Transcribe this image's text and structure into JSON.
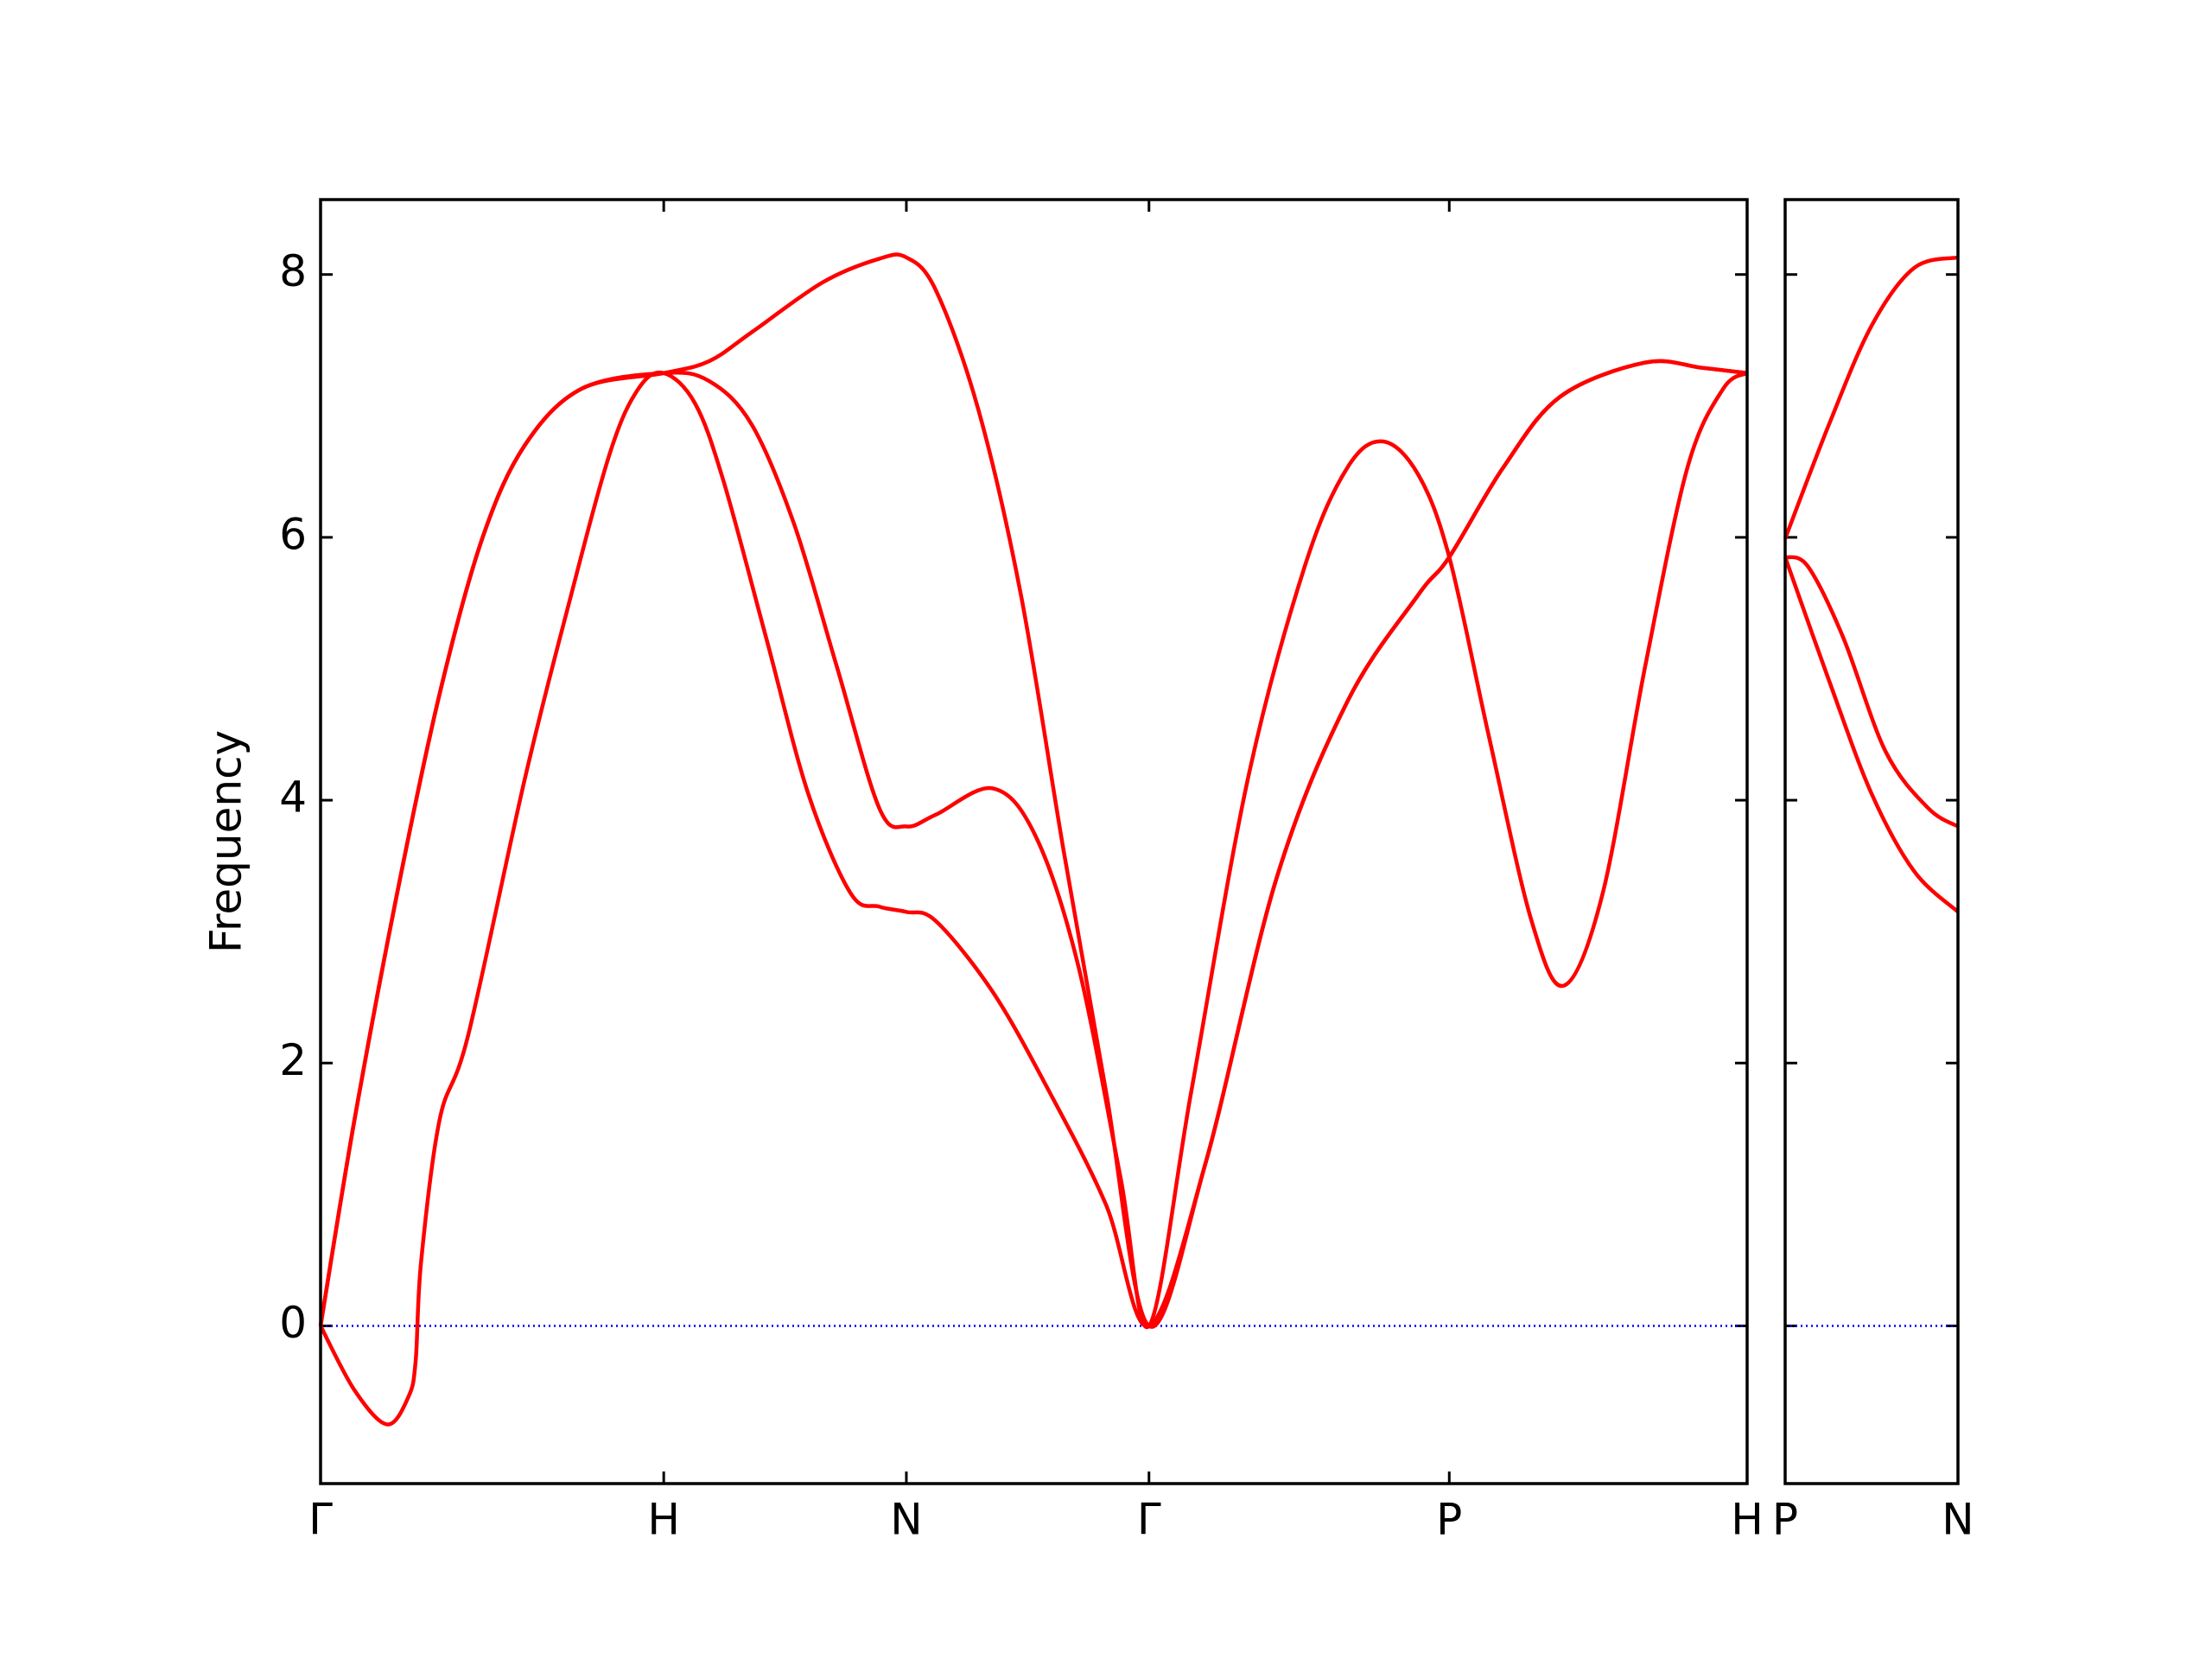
{
  "chart_data": [
    {
      "type": "line",
      "ylabel": "Frequency",
      "xlim": [
        0,
        4.157
      ],
      "ylim": [
        -1.2,
        8.57
      ],
      "xticks": [
        {
          "value": 0,
          "label": "Γ"
        },
        {
          "value": 1,
          "label": "H"
        },
        {
          "value": 1.707,
          "label": "N"
        },
        {
          "value": 2.414,
          "label": "Γ"
        },
        {
          "value": 3.289,
          "label": "P"
        },
        {
          "value": 4.157,
          "label": "H"
        }
      ],
      "yticks": [
        0,
        2,
        4,
        6,
        8
      ],
      "hline": {
        "value": 0,
        "color": "blue"
      },
      "series": [
        {
          "color": "red",
          "x": [
            0,
            0.099,
            0.194,
            0.256,
            0.277,
            0.293,
            0.347,
            0.43,
            0.595,
            0.719,
            0.843,
            0.926,
            1,
            1.091,
            1.174,
            1.298,
            1.421,
            1.545,
            1.628,
            1.707,
            1.793,
            1.959,
            2.124,
            2.289,
            2.414,
            2.579,
            2.785,
            2.992,
            3.198,
            3.289,
            3.446,
            3.612,
            3.86,
            4.025,
            4.157
          ],
          "values": [
            0,
            -0.49,
            -0.75,
            -0.54,
            -0.27,
            0.49,
            1.57,
            2.21,
            4.16,
            5.45,
            6.64,
            7.13,
            7.25,
            7.02,
            6.43,
            5.24,
            4.05,
            3.29,
            3.19,
            3.15,
            3.08,
            2.54,
            1.78,
            0.92,
            0,
            1.24,
            3.4,
            4.75,
            5.56,
            5.85,
            6.53,
            7.07,
            7.33,
            7.29,
            7.25
          ]
        },
        {
          "color": "red",
          "x": [
            0,
            0.099,
            0.223,
            0.347,
            0.471,
            0.595,
            0.76,
            1,
            1.132,
            1.256,
            1.38,
            1.504,
            1.628,
            1.707,
            1.793,
            1.959,
            2.083,
            2.207,
            2.331,
            2.414,
            2.537,
            2.702,
            2.868,
            2.992,
            3.095,
            3.198,
            3.289,
            3.405,
            3.529,
            3.624,
            3.736,
            3.86,
            3.983,
            4.087,
            4.157
          ],
          "values": [
            0,
            1.57,
            3.29,
            4.81,
            5.99,
            6.7,
            7.13,
            7.25,
            7.19,
            6.86,
            6.1,
            5.02,
            3.94,
            3.8,
            3.89,
            4.09,
            3.73,
            2.75,
            1.13,
            0,
            1.78,
            4.16,
            5.78,
            6.53,
            6.73,
            6.48,
            5.85,
            4.48,
            3.08,
            2.59,
            3.29,
            5.02,
            6.53,
            7.13,
            7.25
          ]
        },
        {
          "color": "red",
          "x": [
            0,
            0.099,
            0.223,
            0.347,
            0.471,
            0.595,
            0.76,
            1,
            1.132,
            1.256,
            1.463,
            1.628,
            1.707,
            1.793,
            1.917,
            2.041,
            2.165,
            2.289,
            2.414,
            2.579,
            2.785,
            2.992,
            3.198,
            3.289,
            3.446,
            3.612,
            3.86,
            4.025,
            4.157
          ],
          "values": [
            0,
            1.57,
            3.29,
            4.81,
            5.99,
            6.7,
            7.13,
            7.25,
            7.34,
            7.56,
            7.94,
            8.12,
            8.13,
            7.88,
            6.97,
            5.56,
            3.62,
            1.78,
            0,
            1.24,
            3.4,
            4.75,
            5.56,
            5.85,
            6.53,
            7.07,
            7.33,
            7.29,
            7.25
          ]
        }
      ]
    },
    {
      "type": "line",
      "xlim": [
        0,
        0.504
      ],
      "ylim": [
        -1.2,
        8.57
      ],
      "xticks": [
        {
          "value": 0,
          "label": "P"
        },
        {
          "value": 0.504,
          "label": "N"
        }
      ],
      "yticks": [
        0,
        2,
        4,
        6,
        8
      ],
      "hline": {
        "value": 0,
        "color": "blue"
      },
      "series": [
        {
          "color": "red",
          "x": [
            0,
            0.128,
            0.252,
            0.376,
            0.504
          ],
          "values": [
            5.99,
            6.86,
            7.61,
            8.05,
            8.13
          ]
        },
        {
          "color": "red",
          "x": [
            0,
            0.066,
            0.169,
            0.293,
            0.417,
            0.504
          ],
          "values": [
            5.85,
            5.78,
            5.24,
            4.37,
            3.94,
            3.8
          ]
        },
        {
          "color": "red",
          "x": [
            0,
            0.128,
            0.252,
            0.376,
            0.504
          ],
          "values": [
            5.85,
            4.91,
            4.05,
            3.46,
            3.15
          ]
        }
      ]
    }
  ]
}
